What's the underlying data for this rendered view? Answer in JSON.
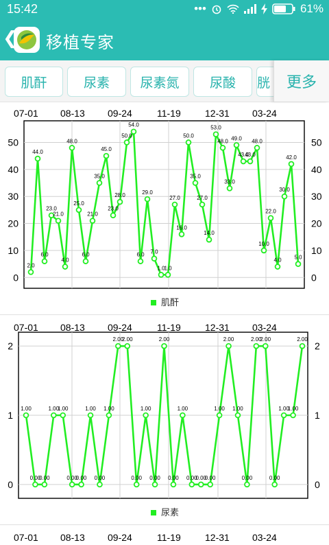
{
  "status_bar": {
    "time": "15:42",
    "dots": "•••",
    "battery_percent": "61%",
    "icons": [
      "alarm-icon",
      "wifi-icon",
      "signal-icon",
      "charging-icon",
      "battery-icon"
    ]
  },
  "app_bar": {
    "back_glyph": "❮",
    "title": "移植专家"
  },
  "tabs": [
    "肌酐",
    "尿素",
    "尿素氮",
    "尿酸",
    "胱"
  ],
  "more_label": "更多",
  "colors": {
    "accent": "#2bbcb3",
    "series": "#22ee22",
    "tab_text": "#29b3ad"
  },
  "chart_data": [
    {
      "type": "line",
      "date_labels": [
        "07-01",
        "08-13",
        "09-24",
        "11-19",
        "12-31",
        "03-24"
      ],
      "legend": "肌酐",
      "values": [
        2,
        44,
        6,
        23,
        21,
        4,
        48,
        25,
        6,
        21,
        35,
        45,
        23,
        28,
        50,
        54,
        6,
        29,
        7,
        1,
        1,
        27,
        16,
        50,
        35,
        27,
        14,
        53,
        48,
        33,
        49,
        43,
        43,
        48,
        10,
        22,
        4,
        30,
        42,
        5
      ],
      "point_labels": [
        "2.0",
        "44.0",
        "6.0",
        "23.0",
        "21.0",
        "4.0",
        "48.0",
        "25.0",
        "6.0",
        "21.0",
        "35.0",
        "45.0",
        "23.0",
        "28.0",
        "50.0",
        "54.0",
        "6.0",
        "29.0",
        "7.0",
        "1.0",
        "1.0",
        "27.0",
        "16.0",
        "50.0",
        "35.0",
        "27.0",
        "14.0",
        "53.0",
        "48.0",
        "33.0",
        "49.0",
        "43.0",
        "43.0",
        "48.0",
        "10.0",
        "22.0",
        "4.0",
        "30.0",
        "42.0",
        "5.0"
      ],
      "yticks": [
        "0",
        "10",
        "20",
        "30",
        "40",
        "50"
      ],
      "ylim": [
        -4,
        58
      ]
    },
    {
      "type": "line",
      "date_labels": [
        "07-01",
        "08-13",
        "09-24",
        "11-19",
        "12-31",
        "03-24"
      ],
      "legend": "尿素",
      "values": [
        1,
        0,
        0,
        1,
        1,
        0,
        0,
        1,
        0,
        1,
        2,
        2,
        0,
        1,
        0,
        2,
        0,
        1,
        0,
        0,
        0,
        1,
        2,
        1,
        0,
        2,
        2,
        0,
        1,
        1,
        2
      ],
      "point_labels": [
        "1.00",
        "0.00",
        "0.00",
        "1.00",
        "1.00",
        "0.00",
        "0.00",
        "1.00",
        "0.00",
        "1.00",
        "2.00",
        "2.00",
        "0.00",
        "1.00",
        "0.00",
        "2.00",
        "0.00",
        "1.00",
        "0.00",
        "0.00",
        "0.00",
        "1.00",
        "2.00",
        "1.00",
        "0.00",
        "2.00",
        "2.00",
        "0.00",
        "1.00",
        "1.00",
        "2.00"
      ],
      "yticks": [
        "0",
        "1",
        "2"
      ],
      "ylim": [
        -0.2,
        2.2
      ]
    },
    {
      "type": "line",
      "date_labels": [
        "07-01",
        "08-13",
        "09-24",
        "11-19",
        "12-31",
        "03-24"
      ]
    }
  ]
}
